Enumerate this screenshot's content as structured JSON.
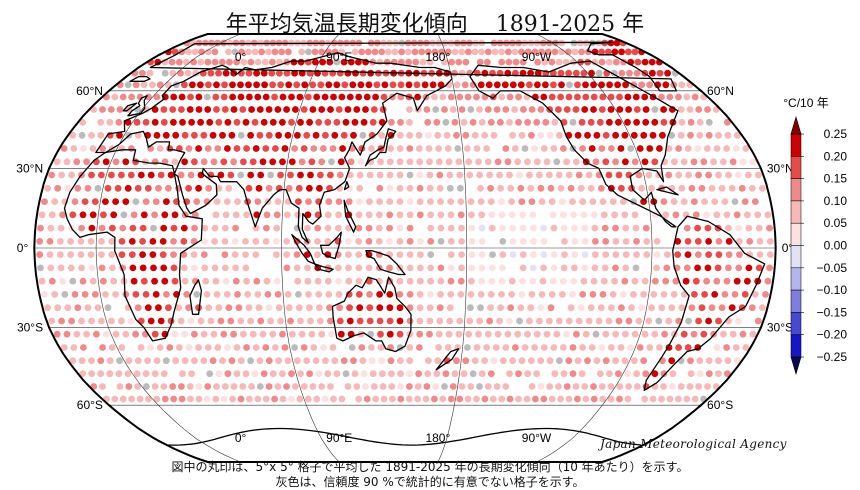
{
  "title": "年平均気温長期変化傾向    1891-2025 年",
  "credit": "Japan Meteorological Agency",
  "notes": [
    "図中の丸印は、5°x 5° 格子で平均した 1891-2025 年の長期変化傾向（10 年あたり）を示す。",
    "灰色は、信頼度 90 %で統計的に有意でない格子を示す。"
  ],
  "map": {
    "projection": "Robinson",
    "central_longitude": 150,
    "top_lon_labels": [
      "0°",
      "90°E",
      "180°",
      "90°W"
    ],
    "bottom_lon_labels": [
      "0°",
      "90°E",
      "180°",
      "90°W"
    ],
    "lat_labels": [
      "60°N",
      "30°N",
      "0°",
      "30°S",
      "60°S"
    ],
    "graticule_lons": [
      0,
      90,
      180,
      -90
    ],
    "graticule_lats": [
      60,
      30,
      0,
      -30,
      -60
    ]
  },
  "legend": {
    "unit": "°C/10 年",
    "ticks": [
      "0.25",
      "0.20",
      "0.15",
      "0.10",
      "0.05",
      "0.00",
      "−0.05",
      "−0.10",
      "−0.15",
      "−0.20",
      "−0.25"
    ],
    "colors": [
      "#cc0000",
      "#e84a4a",
      "#f08a8a",
      "#f7b8b8",
      "#fde0e0",
      "#e2e2f7",
      "#b4b4ee",
      "#7e7ee0",
      "#4848d6",
      "#1616c8"
    ],
    "insignificant_color": "#bbbbbb"
  },
  "grid_summary": {
    "cell_size_deg": 5,
    "ocean_data_lat_range": [
      -70,
      80
    ],
    "typical_trend": 0.08
  }
}
